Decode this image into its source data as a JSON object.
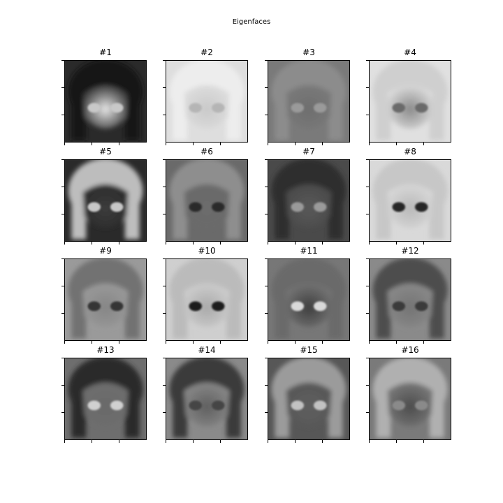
{
  "figure": {
    "title": "Eigenfaces"
  },
  "panels": [
    {
      "label": "#1",
      "bg": "#2a2a2a",
      "hair": "#151515",
      "face": "#e8e8e8",
      "eye": "#c8c8c8"
    },
    {
      "label": "#2",
      "bg": "#dedede",
      "hair": "#ededed",
      "face": "#c9c9c9",
      "eye": "#b5b5b5"
    },
    {
      "label": "#3",
      "bg": "#7a7a7a",
      "hair": "#8c8c8c",
      "face": "#6e6e6e",
      "eye": "#9a9a9a"
    },
    {
      "label": "#4",
      "bg": "#e0e0e0",
      "hair": "#cfcfcf",
      "face": "#8a8a8a",
      "eye": "#6a6a6a"
    },
    {
      "label": "#5",
      "bg": "#2a2a2a",
      "hair": "#bdbdbd",
      "face": "#3c3c3c",
      "eye": "#c7c7c7"
    },
    {
      "label": "#6",
      "bg": "#6a6a6a",
      "hair": "#8e8e8e",
      "face": "#6c6c6c",
      "eye": "#2c2c2c"
    },
    {
      "label": "#7",
      "bg": "#4a4a4a",
      "hair": "#2f2f2f",
      "face": "#585858",
      "eye": "#9a9a9a"
    },
    {
      "label": "#8",
      "bg": "#d9d9d9",
      "hair": "#c7c7c7",
      "face": "#b9b9b9",
      "eye": "#262626"
    },
    {
      "label": "#9",
      "bg": "#9a9a9a",
      "hair": "#727272",
      "face": "#868686",
      "eye": "#363636"
    },
    {
      "label": "#10",
      "bg": "#cfcfcf",
      "hair": "#bbbbbb",
      "face": "#a9a9a9",
      "eye": "#1f1f1f"
    },
    {
      "label": "#11",
      "bg": "#777777",
      "hair": "#6a6a6a",
      "face": "#3e3e3e",
      "eye": "#d9d9d9"
    },
    {
      "label": "#12",
      "bg": "#8a8a8a",
      "hair": "#4d4d4d",
      "face": "#747474",
      "eye": "#3a3a3a"
    },
    {
      "label": "#13",
      "bg": "#6e6e6e",
      "hair": "#2b2b2b",
      "face": "#6a6a6a",
      "eye": "#d0d0d0"
    },
    {
      "label": "#14",
      "bg": "#8a8a8a",
      "hair": "#3a3a3a",
      "face": "#5f5f5f",
      "eye": "#444444"
    },
    {
      "label": "#15",
      "bg": "#575757",
      "hair": "#9b9b9b",
      "face": "#5e5e5e",
      "eye": "#c2c2c2"
    },
    {
      "label": "#16",
      "bg": "#7a7a7a",
      "hair": "#b0b0b0",
      "face": "#4c4c4c",
      "eye": "#8a8a8a"
    }
  ]
}
